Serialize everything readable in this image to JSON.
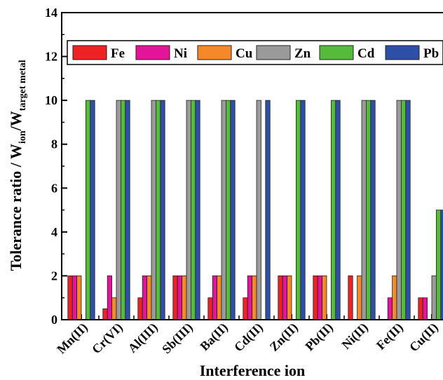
{
  "chart_data": {
    "type": "bar",
    "xlabel": "Interference ion",
    "ylabel_parts": {
      "main": "Tolerance ratio / W",
      "sub1": "ion",
      "mid": "/W",
      "sub2": "target metal"
    },
    "ylim": [
      0,
      14
    ],
    "yticks": [
      "0",
      "2",
      "4",
      "6",
      "8",
      "10",
      "12",
      "14"
    ],
    "categories": [
      "Mn(II)",
      "Cr(VI)",
      "Al(III)",
      "Sb(III)",
      "Ba(II)",
      "Cd(II)",
      "Zn(II)",
      "Pb(II)",
      "Ni(II)",
      "Fe(II)",
      "Cu(II)"
    ],
    "legend_position": "top",
    "series": [
      {
        "name": "Fe",
        "color": "#ee2222",
        "values": [
          2,
          0.5,
          1,
          2,
          1,
          1,
          2,
          2,
          2,
          null,
          1
        ]
      },
      {
        "name": "Ni",
        "color": "#e4149a",
        "values": [
          2,
          2,
          2,
          2,
          2,
          2,
          2,
          2,
          null,
          1,
          1
        ]
      },
      {
        "name": "Cu",
        "color": "#f5892a",
        "values": [
          2,
          1,
          2,
          2,
          2,
          2,
          2,
          2,
          2,
          2,
          null
        ]
      },
      {
        "name": "Zn",
        "color": "#9a9a9a",
        "values": [
          null,
          10,
          10,
          10,
          10,
          10,
          null,
          null,
          10,
          10,
          2
        ]
      },
      {
        "name": "Cd",
        "color": "#55bb3a",
        "values": [
          10,
          10,
          10,
          10,
          10,
          null,
          10,
          10,
          10,
          10,
          5
        ]
      },
      {
        "name": "Pb",
        "color": "#2e4fa8",
        "values": [
          10,
          10,
          10,
          10,
          10,
          10,
          10,
          10,
          10,
          10,
          5
        ]
      }
    ]
  }
}
